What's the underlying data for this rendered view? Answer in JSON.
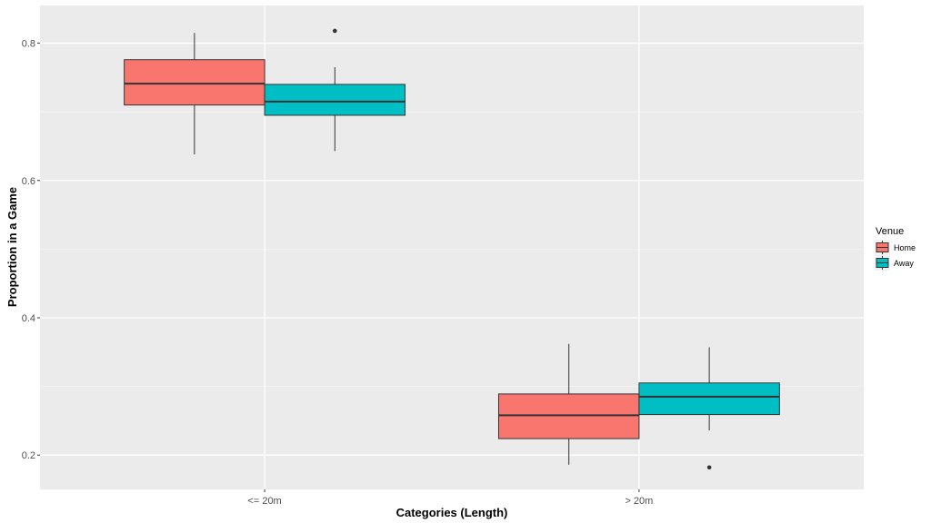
{
  "chart_data": {
    "type": "box",
    "xlabel": "Categories (Length)",
    "ylabel": "Proportion in a Game",
    "categories": [
      "<= 20m",
      "> 20m"
    ],
    "ylim": [
      0.15,
      0.855
    ],
    "yticks": [
      0.2,
      0.4,
      0.6,
      0.8
    ],
    "ytick_labels": [
      "0.2",
      "0.4",
      "0.6",
      "0.8"
    ],
    "grid": true,
    "legend": {
      "title": "Venue",
      "position": "right"
    },
    "series": [
      {
        "name": "Home",
        "color": "#F8766D",
        "boxes": [
          {
            "category": "<= 20m",
            "min": 0.638,
            "q1": 0.71,
            "median": 0.741,
            "q3": 0.776,
            "max": 0.815,
            "outliers": []
          },
          {
            "category": "> 20m",
            "min": 0.186,
            "q1": 0.224,
            "median": 0.258,
            "q3": 0.289,
            "max": 0.362,
            "outliers": []
          }
        ]
      },
      {
        "name": "Away",
        "color": "#00BFC4",
        "boxes": [
          {
            "category": "<= 20m",
            "min": 0.643,
            "q1": 0.695,
            "median": 0.715,
            "q3": 0.74,
            "max": 0.765,
            "outliers": [
              0.818
            ]
          },
          {
            "category": "> 20m",
            "min": 0.236,
            "q1": 0.259,
            "median": 0.285,
            "q3": 0.305,
            "max": 0.357,
            "outliers": [
              0.182
            ]
          }
        ]
      }
    ]
  }
}
